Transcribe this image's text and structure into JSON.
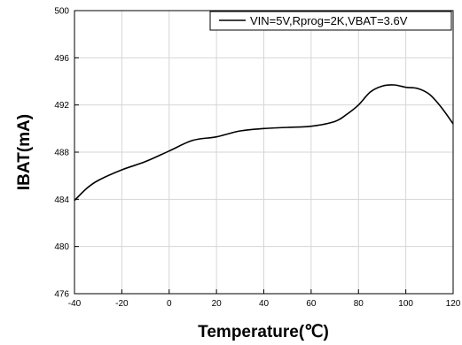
{
  "chart_data": {
    "type": "line",
    "xlabel": "Temperature(℃)",
    "ylabel": "IBAT(mA)",
    "xlim": [
      -40,
      120
    ],
    "ylim": [
      476,
      500
    ],
    "xticks": [
      -40,
      -20,
      0,
      20,
      40,
      60,
      80,
      100,
      120
    ],
    "yticks": [
      476,
      480,
      484,
      488,
      492,
      496,
      500
    ],
    "x_tick_labels": [
      "-40",
      "-20",
      "0",
      "20",
      "40",
      "60",
      "80",
      "100",
      "120"
    ],
    "y_tick_labels": [
      "476",
      "480",
      "484",
      "488",
      "492",
      "496",
      "500"
    ],
    "grid": true,
    "legend_position": "top-right",
    "series": [
      {
        "name": "VIN=5V,Rprog=2K,VBAT=3.6V",
        "color": "#000000",
        "x": [
          -40,
          -35,
          -30,
          -20,
          -10,
          0,
          10,
          20,
          30,
          40,
          50,
          60,
          70,
          75,
          80,
          85,
          90,
          95,
          100,
          105,
          110,
          115,
          120
        ],
        "y": [
          483.9,
          484.9,
          485.6,
          486.5,
          487.2,
          488.1,
          489.0,
          489.3,
          489.8,
          490.0,
          490.1,
          490.2,
          490.6,
          491.2,
          492.0,
          493.1,
          493.6,
          493.7,
          493.5,
          493.4,
          492.9,
          491.8,
          490.4
        ]
      }
    ]
  }
}
